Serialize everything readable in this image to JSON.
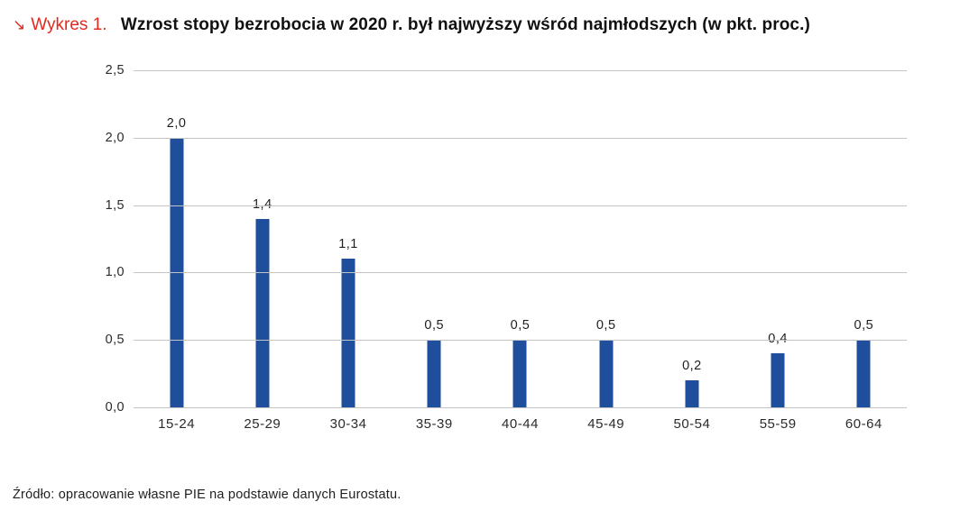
{
  "header": {
    "figure_label": "Wykres 1.",
    "arrow_icon": "↘",
    "title": "Wzrost stopy bezrobocia w 2020 r. był najwyższy wśród najmłodszych (w pkt. proc.)"
  },
  "chart_data": {
    "type": "bar",
    "title": "Wzrost stopy bezrobocia w 2020 r. był najwyższy wśród najmłodszych (w pkt. proc.)",
    "categories": [
      "15-24",
      "25-29",
      "30-34",
      "35-39",
      "40-44",
      "45-49",
      "50-54",
      "55-59",
      "60-64"
    ],
    "values": [
      2.0,
      1.4,
      1.1,
      0.5,
      0.5,
      0.5,
      0.2,
      0.4,
      0.5
    ],
    "value_labels": [
      "2,0",
      "1,4",
      "1,1",
      "0,5",
      "0,5",
      "0,5",
      "0,2",
      "0,4",
      "0,5"
    ],
    "xlabel": "",
    "ylabel": "",
    "ylim": [
      0,
      2.5
    ],
    "y_ticks": [
      0,
      0.5,
      1.0,
      1.5,
      2.0,
      2.5
    ],
    "y_tick_labels": [
      "0,0",
      "0,5",
      "1,0",
      "1,5",
      "2,0",
      "2,5"
    ],
    "grid": true,
    "legend_position": "none"
  },
  "footer": {
    "source": "Źródło: opracowanie własne PIE na podstawie danych Eurostatu."
  },
  "colors": {
    "bar_blue": "#1f4e9c",
    "accent_red": "#e02a20",
    "grid_gray": "#c3c3c3"
  }
}
